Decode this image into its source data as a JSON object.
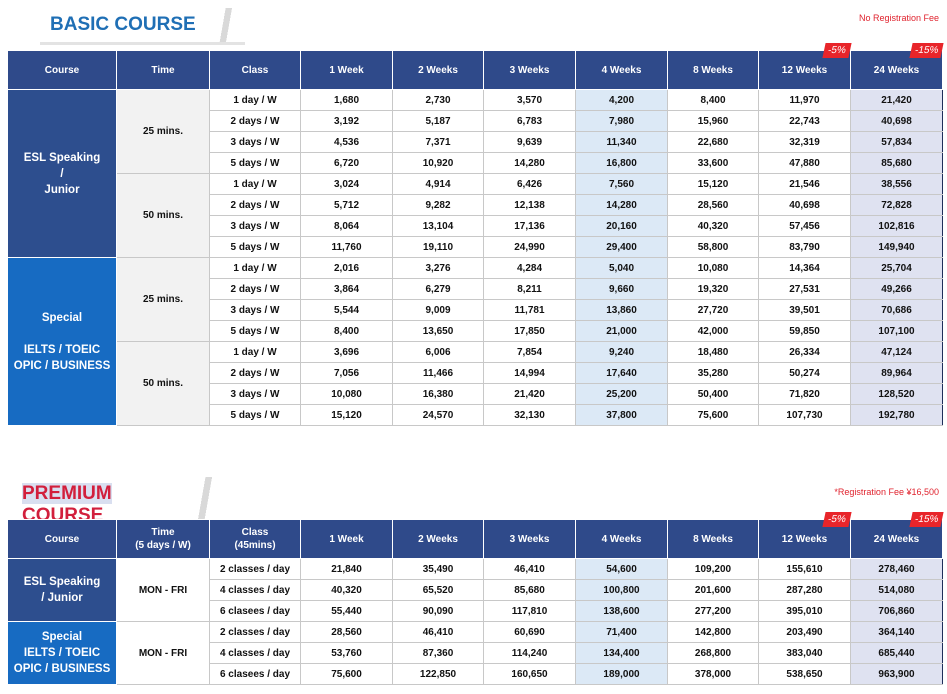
{
  "basic": {
    "title": "BASIC COURSE",
    "note": "No Registration Fee",
    "headers": [
      "Course",
      "Time",
      "Class",
      "1 Week",
      "2 Weeks",
      "3 Weeks",
      "4 Weeks",
      "8 Weeks",
      "12 Weeks",
      "24 Weeks"
    ],
    "badges": [
      "-5%",
      "-15%"
    ],
    "sections": [
      {
        "course": [
          "ESL Speaking",
          "/",
          "Junior"
        ],
        "groups": [
          {
            "time": "25 mins.",
            "rows": [
              {
                "class": "1 day / W",
                "prices": [
                  "1,680",
                  "2,730",
                  "3,570",
                  "4,200",
                  "8,400",
                  "11,970",
                  "21,420"
                ]
              },
              {
                "class": "2 days / W",
                "prices": [
                  "3,192",
                  "5,187",
                  "6,783",
                  "7,980",
                  "15,960",
                  "22,743",
                  "40,698"
                ]
              },
              {
                "class": "3 days / W",
                "prices": [
                  "4,536",
                  "7,371",
                  "9,639",
                  "11,340",
                  "22,680",
                  "32,319",
                  "57,834"
                ]
              },
              {
                "class": "5 days / W",
                "prices": [
                  "6,720",
                  "10,920",
                  "14,280",
                  "16,800",
                  "33,600",
                  "47,880",
                  "85,680"
                ]
              }
            ]
          },
          {
            "time": "50 mins.",
            "rows": [
              {
                "class": "1 day / W",
                "prices": [
                  "3,024",
                  "4,914",
                  "6,426",
                  "7,560",
                  "15,120",
                  "21,546",
                  "38,556"
                ]
              },
              {
                "class": "2 days / W",
                "prices": [
                  "5,712",
                  "9,282",
                  "12,138",
                  "14,280",
                  "28,560",
                  "40,698",
                  "72,828"
                ]
              },
              {
                "class": "3 days / W",
                "prices": [
                  "8,064",
                  "13,104",
                  "17,136",
                  "20,160",
                  "40,320",
                  "57,456",
                  "102,816"
                ]
              },
              {
                "class": "5 days / W",
                "prices": [
                  "11,760",
                  "19,110",
                  "24,990",
                  "29,400",
                  "58,800",
                  "83,790",
                  "149,940"
                ]
              }
            ]
          }
        ]
      },
      {
        "course": [
          "Special",
          "IELTS / TOEIC",
          "OPIC / BUSINESS"
        ],
        "groups": [
          {
            "time": "25 mins.",
            "rows": [
              {
                "class": "1 day / W",
                "prices": [
                  "2,016",
                  "3,276",
                  "4,284",
                  "5,040",
                  "10,080",
                  "14,364",
                  "25,704"
                ]
              },
              {
                "class": "2 days / W",
                "prices": [
                  "3,864",
                  "6,279",
                  "8,211",
                  "9,660",
                  "19,320",
                  "27,531",
                  "49,266"
                ]
              },
              {
                "class": "3 days / W",
                "prices": [
                  "5,544",
                  "9,009",
                  "11,781",
                  "13,860",
                  "27,720",
                  "39,501",
                  "70,686"
                ]
              },
              {
                "class": "5 days / W",
                "prices": [
                  "8,400",
                  "13,650",
                  "17,850",
                  "21,000",
                  "42,000",
                  "59,850",
                  "107,100"
                ]
              }
            ]
          },
          {
            "time": "50 mins.",
            "rows": [
              {
                "class": "1 day / W",
                "prices": [
                  "3,696",
                  "6,006",
                  "7,854",
                  "9,240",
                  "18,480",
                  "26,334",
                  "47,124"
                ]
              },
              {
                "class": "2 days / W",
                "prices": [
                  "7,056",
                  "11,466",
                  "14,994",
                  "17,640",
                  "35,280",
                  "50,274",
                  "89,964"
                ]
              },
              {
                "class": "3 days / W",
                "prices": [
                  "10,080",
                  "16,380",
                  "21,420",
                  "25,200",
                  "50,400",
                  "71,820",
                  "128,520"
                ]
              },
              {
                "class": "5 days / W",
                "prices": [
                  "15,120",
                  "24,570",
                  "32,130",
                  "37,800",
                  "75,600",
                  "107,730",
                  "192,780"
                ]
              }
            ]
          }
        ]
      }
    ]
  },
  "premium": {
    "title": {
      "highlight": "PREMIUM",
      "rest": "COURSE"
    },
    "note": "*Registration Fee ¥16,500",
    "headers": [
      "Course",
      [
        "Time",
        "(5 days / W)"
      ],
      [
        "Class",
        "(45mins)"
      ],
      "1 Week",
      "2 Weeks",
      "3 Weeks",
      "4 Weeks",
      "8 Weeks",
      "12 Weeks",
      "24 Weeks"
    ],
    "badges": [
      "-5%",
      "-15%"
    ],
    "sections": [
      {
        "course": [
          "ESL Speaking",
          "/ Junior"
        ],
        "groups": [
          {
            "time": "MON - FRI",
            "rows": [
              {
                "class": "2 classes / day",
                "prices": [
                  "21,840",
                  "35,490",
                  "46,410",
                  "54,600",
                  "109,200",
                  "155,610",
                  "278,460"
                ]
              },
              {
                "class": "4 classes / day",
                "prices": [
                  "40,320",
                  "65,520",
                  "85,680",
                  "100,800",
                  "201,600",
                  "287,280",
                  "514,080"
                ]
              },
              {
                "class": "6 clasees / day",
                "prices": [
                  "55,440",
                  "90,090",
                  "117,810",
                  "138,600",
                  "277,200",
                  "395,010",
                  "706,860"
                ]
              }
            ]
          }
        ]
      },
      {
        "course": [
          "Special",
          "IELTS / TOEIC",
          "OPIC / BUSINESS"
        ],
        "groups": [
          {
            "time": "MON - FRI",
            "rows": [
              {
                "class": "2 classes / day",
                "prices": [
                  "28,560",
                  "46,410",
                  "60,690",
                  "71,400",
                  "142,800",
                  "203,490",
                  "364,140"
                ]
              },
              {
                "class": "4 classes / day",
                "prices": [
                  "53,760",
                  "87,360",
                  "114,240",
                  "134,400",
                  "268,800",
                  "383,040",
                  "685,440"
                ]
              },
              {
                "class": "6 clasees / day",
                "prices": [
                  "75,600",
                  "122,850",
                  "160,650",
                  "189,000",
                  "378,000",
                  "538,650",
                  "963,900"
                ]
              }
            ]
          }
        ]
      }
    ]
  }
}
